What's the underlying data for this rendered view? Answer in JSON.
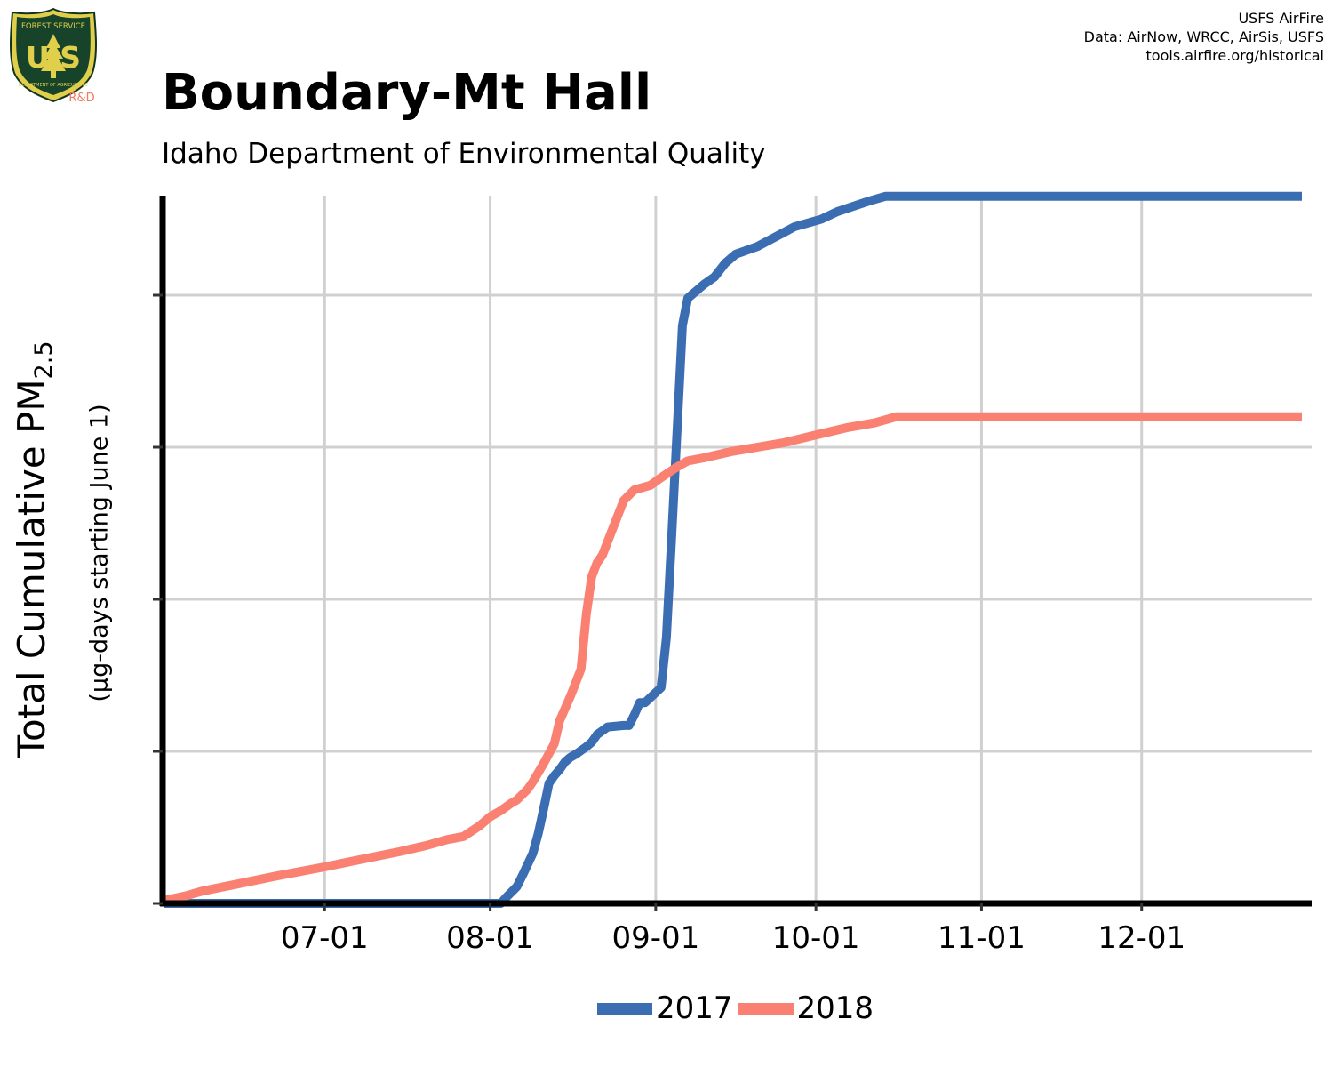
{
  "header": {
    "title": "Boundary-Mt Hall",
    "subtitle": "Idaho Department of Environmental Quality",
    "credits": [
      "USFS AirFire",
      "Data: AirNow, WRCC, AirSis, USFS",
      "tools.airfire.org/historical"
    ]
  },
  "logo": {
    "top_text": "FOREST SERVICE",
    "letters": "U S",
    "bottom_text": "DEPARTMENT OF AGRICULTURE",
    "tag": "R&D"
  },
  "colors": {
    "s2017": "#3b6db3",
    "s2018": "#fa8072",
    "grid": "#d0d0d0",
    "axis": "#000000"
  },
  "chart_data": {
    "type": "line",
    "ylabel_main": "Total Cumulative PM",
    "ylabel_sub": "2.5",
    "ylabel_units": "(µg-days starting June 1)",
    "xlim": [
      "2018-06-01",
      "2018-12-31"
    ],
    "ylim": [
      0,
      4.65
    ],
    "y_ticks": [
      0,
      1,
      2,
      3,
      4
    ],
    "y_tick_labels": false,
    "x_ticks": [
      {
        "date": "2018-07-01",
        "label": "07-01"
      },
      {
        "date": "2018-08-01",
        "label": "08-01"
      },
      {
        "date": "2018-09-01",
        "label": "09-01"
      },
      {
        "date": "2018-10-01",
        "label": "10-01"
      },
      {
        "date": "2018-11-01",
        "label": "11-01"
      },
      {
        "date": "2018-12-01",
        "label": "12-01"
      }
    ],
    "grid": true,
    "legend_position": "bottom",
    "series": [
      {
        "name": "2017",
        "color": "#3b6db3",
        "points": [
          [
            "2018-06-01",
            0
          ],
          [
            "2018-06-05",
            0
          ],
          [
            "2018-08-03",
            0
          ],
          [
            "2018-08-04",
            0.04
          ],
          [
            "2018-08-06",
            0.11
          ],
          [
            "2018-08-07",
            0.18
          ],
          [
            "2018-08-09",
            0.33
          ],
          [
            "2018-08-10",
            0.46
          ],
          [
            "2018-08-11",
            0.62
          ],
          [
            "2018-08-12",
            0.79
          ],
          [
            "2018-08-13",
            0.84
          ],
          [
            "2018-08-14",
            0.88
          ],
          [
            "2018-08-15",
            0.93
          ],
          [
            "2018-08-16",
            0.96
          ],
          [
            "2018-08-17",
            0.98
          ],
          [
            "2018-08-19",
            1.03
          ],
          [
            "2018-08-20",
            1.06
          ],
          [
            "2018-08-21",
            1.11
          ],
          [
            "2018-08-23",
            1.16
          ],
          [
            "2018-08-26",
            1.17
          ],
          [
            "2018-08-27",
            1.17
          ],
          [
            "2018-08-28",
            1.24
          ],
          [
            "2018-08-29",
            1.32
          ],
          [
            "2018-08-30",
            1.32
          ],
          [
            "2018-09-02",
            1.42
          ],
          [
            "2018-09-03",
            1.75
          ],
          [
            "2018-09-04",
            2.42
          ],
          [
            "2018-09-05",
            3.11
          ],
          [
            "2018-09-06",
            3.8
          ],
          [
            "2018-09-07",
            3.98
          ],
          [
            "2018-09-09",
            4.04
          ],
          [
            "2018-09-10",
            4.07
          ],
          [
            "2018-09-12",
            4.12
          ],
          [
            "2018-09-14",
            4.21
          ],
          [
            "2018-09-16",
            4.27
          ],
          [
            "2018-09-20",
            4.32
          ],
          [
            "2018-09-27",
            4.45
          ],
          [
            "2018-10-02",
            4.5
          ],
          [
            "2018-10-05",
            4.55
          ],
          [
            "2018-10-11",
            4.62
          ],
          [
            "2018-10-14",
            4.65
          ],
          [
            "2018-12-31",
            4.65
          ]
        ]
      },
      {
        "name": "2018",
        "color": "#fa8072",
        "points": [
          [
            "2018-06-01",
            0.02
          ],
          [
            "2018-06-05",
            0.05
          ],
          [
            "2018-06-08",
            0.08
          ],
          [
            "2018-06-15",
            0.13
          ],
          [
            "2018-06-22",
            0.18
          ],
          [
            "2018-07-01",
            0.24
          ],
          [
            "2018-07-08",
            0.29
          ],
          [
            "2018-07-15",
            0.34
          ],
          [
            "2018-07-20",
            0.38
          ],
          [
            "2018-07-24",
            0.42
          ],
          [
            "2018-07-27",
            0.44
          ],
          [
            "2018-07-30",
            0.51
          ],
          [
            "2018-08-01",
            0.57
          ],
          [
            "2018-08-03",
            0.61
          ],
          [
            "2018-08-05",
            0.66
          ],
          [
            "2018-08-06",
            0.68
          ],
          [
            "2018-08-08",
            0.75
          ],
          [
            "2018-08-09",
            0.8
          ],
          [
            "2018-08-10",
            0.86
          ],
          [
            "2018-08-11",
            0.92
          ],
          [
            "2018-08-13",
            1.05
          ],
          [
            "2018-08-14",
            1.2
          ],
          [
            "2018-08-16",
            1.36
          ],
          [
            "2018-08-18",
            1.54
          ],
          [
            "2018-08-19",
            1.9
          ],
          [
            "2018-08-20",
            2.15
          ],
          [
            "2018-08-21",
            2.24
          ],
          [
            "2018-08-22",
            2.29
          ],
          [
            "2018-08-23",
            2.38
          ],
          [
            "2018-08-24",
            2.47
          ],
          [
            "2018-08-26",
            2.65
          ],
          [
            "2018-08-28",
            2.72
          ],
          [
            "2018-08-31",
            2.75
          ],
          [
            "2018-09-02",
            2.8
          ],
          [
            "2018-09-05",
            2.87
          ],
          [
            "2018-09-07",
            2.91
          ],
          [
            "2018-09-10",
            2.93
          ],
          [
            "2018-09-15",
            2.97
          ],
          [
            "2018-09-20",
            3.0
          ],
          [
            "2018-09-25",
            3.03
          ],
          [
            "2018-10-01",
            3.08
          ],
          [
            "2018-10-07",
            3.13
          ],
          [
            "2018-10-12",
            3.16
          ],
          [
            "2018-10-16",
            3.2
          ],
          [
            "2018-12-31",
            3.2
          ]
        ]
      }
    ]
  },
  "legend": {
    "items": [
      {
        "label": "2017"
      },
      {
        "label": "2018"
      }
    ]
  }
}
